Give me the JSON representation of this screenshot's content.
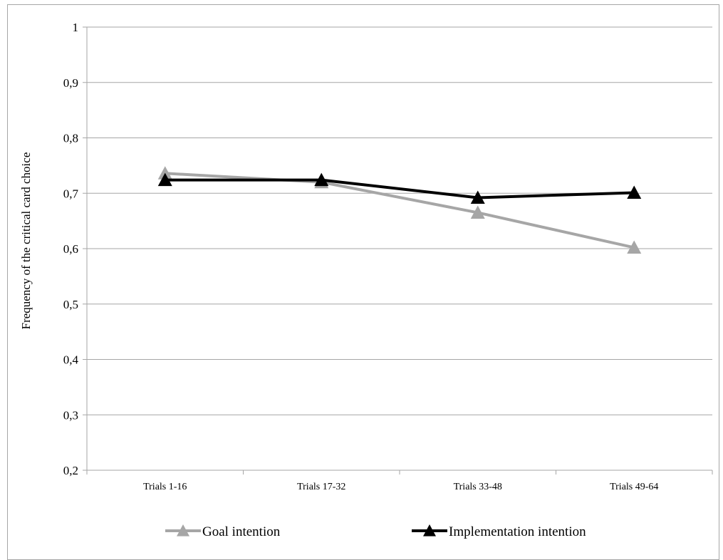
{
  "chart_data": {
    "type": "line",
    "categories": [
      "Trials 1-16",
      "Trials 17-32",
      "Trials 33-48",
      "Trials 49-64"
    ],
    "series": [
      {
        "name": "Goal intention",
        "values": [
          0.736,
          0.72,
          0.665,
          0.602
        ],
        "color": "#a6a6a6",
        "marker": "triangle"
      },
      {
        "name": "Implementation intention",
        "values": [
          0.724,
          0.724,
          0.692,
          0.701
        ],
        "color": "#000000",
        "marker": "triangle"
      }
    ],
    "title": "",
    "xlabel": "",
    "ylabel": "Frequency of the critical card choice",
    "ylim": [
      0.2,
      1.0
    ],
    "yticks": [
      "0,2",
      "0,3",
      "0,4",
      "0,5",
      "0,6",
      "0,7",
      "0,8",
      "0,9",
      "1"
    ],
    "grid": true,
    "legend_position": "bottom"
  }
}
